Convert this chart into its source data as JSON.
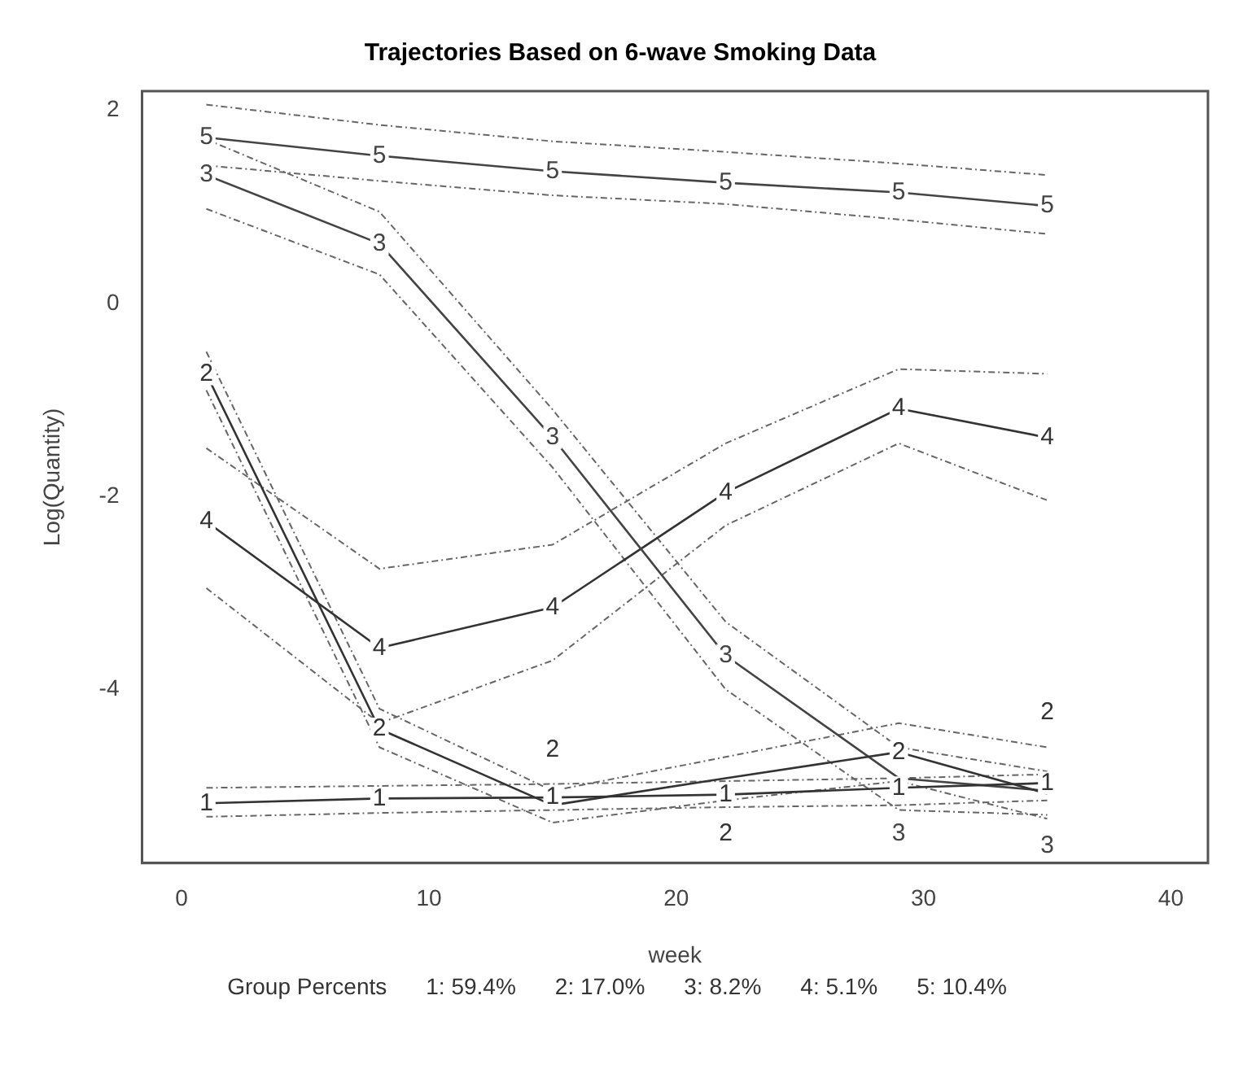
{
  "chart_data": {
    "type": "line",
    "title": "Trajectories Based on 6-wave Smoking Data",
    "xlabel": "week",
    "ylabel": "Log(Quantity)",
    "annotations": [
      "Group Percents",
      "1: 59.4%",
      "2: 17.0%",
      "3: 8.2%",
      "4: 5.1%",
      "5: 10.4%"
    ],
    "x": [
      1,
      8,
      15,
      22,
      29,
      35
    ],
    "series": [
      {
        "name": "1",
        "color": "#333333",
        "marker": "square",
        "values": [
          -5.18,
          -5.13,
          -5.12,
          -5.09,
          -5.02,
          -4.97
        ]
      },
      {
        "name": "2",
        "color": "#333333",
        "marker": "square",
        "values": [
          -0.73,
          -4.41,
          -5.2,
          -4.92,
          -4.65,
          -5.08
        ]
      },
      {
        "name": "3",
        "color": "#444444",
        "marker": "square",
        "values": [
          1.33,
          0.62,
          -1.39,
          -3.65,
          -4.92,
          -5.05
        ]
      },
      {
        "name": "4",
        "color": "#333333",
        "marker": "square",
        "values": [
          -2.26,
          -3.57,
          -3.15,
          -1.96,
          -1.09,
          -1.39
        ]
      },
      {
        "name": "5",
        "color": "#444444",
        "marker": "square",
        "values": [
          1.72,
          1.53,
          1.37,
          1.25,
          1.15,
          1.01
        ]
      },
      {
        "color": "#666666",
        "line_style": "dashed",
        "values": [
          -5.32,
          -5.28,
          -5.25,
          -5.22,
          -5.2,
          -5.15
        ]
      },
      {
        "color": "#666666",
        "line_style": "dashed",
        "values": [
          -5.02,
          -5.0,
          -4.98,
          -4.95,
          -4.92,
          -4.88
        ]
      },
      {
        "color": "#666666",
        "line_style": "dashed",
        "values": [
          -0.9,
          -4.6,
          -5.38,
          -5.15,
          -4.95,
          -5.34
        ]
      },
      {
        "color": "#666666",
        "line_style": "dashed",
        "values": [
          -0.5,
          -4.2,
          -5.05,
          -4.7,
          -4.35,
          -4.6
        ]
      },
      {
        "color": "#666666",
        "line_style": "dashed",
        "values": [
          0.98,
          0.3,
          -1.7,
          -4.0,
          -5.25,
          -5.3
        ]
      },
      {
        "color": "#666666",
        "line_style": "dashed",
        "values": [
          1.7,
          0.95,
          -1.1,
          -3.3,
          -4.6,
          -4.85
        ]
      },
      {
        "color": "#666666",
        "line_style": "dashed",
        "values": [
          -2.95,
          -4.35,
          -3.7,
          -2.3,
          -1.45,
          -2.04
        ]
      },
      {
        "color": "#666666",
        "line_style": "dashed",
        "values": [
          -1.5,
          -2.75,
          -2.5,
          -1.45,
          -0.68,
          -0.73
        ]
      },
      {
        "color": "#666666",
        "line_style": "dashed",
        "values": [
          1.43,
          1.27,
          1.12,
          1.03,
          0.87,
          0.72
        ]
      },
      {
        "color": "#666666",
        "line_style": "dashed",
        "values": [
          2.06,
          1.85,
          1.68,
          1.57,
          1.45,
          1.33
        ]
      }
    ],
    "xlim": [
      -1.6,
      41.5
    ],
    "ylim": [
      -5.8,
      2.2
    ],
    "xticks": [
      0,
      10,
      20,
      30,
      40
    ],
    "yticks": [
      -4,
      -2,
      0,
      2
    ],
    "grid": false,
    "legend": false,
    "line_style": "solid"
  }
}
